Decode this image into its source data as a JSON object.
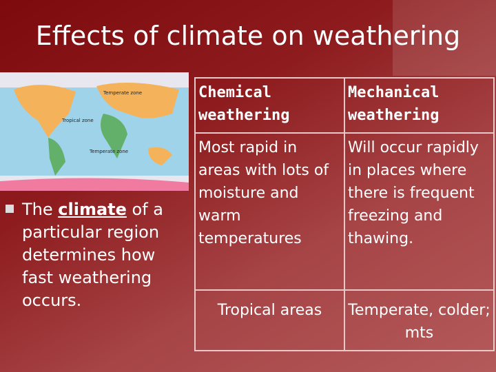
{
  "slide": {
    "title": "Effects of climate on weathering",
    "map": {
      "zones": [
        "Temperate zone",
        "Tropical zone",
        "Temperate zone"
      ]
    },
    "bullet": {
      "before": "The ",
      "keyword": "climate",
      "after": " of a particular region determines how fast weathering occurs."
    },
    "table": {
      "header": [
        "Chemical weathering",
        "Mechanical weathering"
      ],
      "body": [
        "Most rapid in areas with lots of moisture and warm temperatures",
        "Will occur rapidly in places where there is frequent freezing and thawing."
      ],
      "footer": [
        "Tropical areas",
        "Temperate, colder; mts"
      ]
    }
  }
}
